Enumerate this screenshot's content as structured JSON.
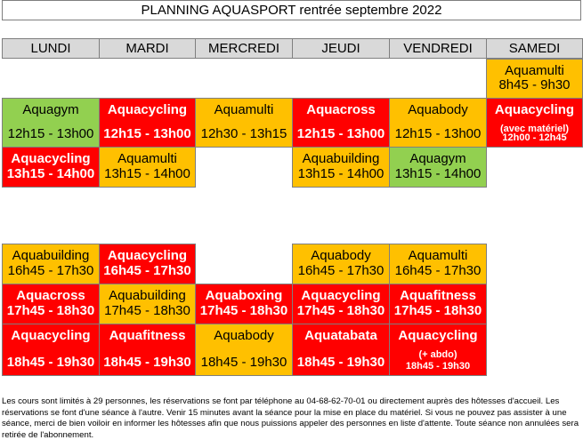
{
  "title": "PLANNING AQUASPORT rentrée septembre 2022",
  "days": [
    "LUNDI",
    "MARDI",
    "MERCREDI",
    "JEUDI",
    "VENDREDI",
    "SAMEDI"
  ],
  "sessions": [
    {
      "day": "SAMEDI",
      "name": "Aquamulti",
      "time": "8h45 - 9h30",
      "color": "orange"
    },
    {
      "day": "LUNDI",
      "name": "Aquagym",
      "time": "12h15 - 13h00",
      "color": "green"
    },
    {
      "day": "MARDI",
      "name": "Aquacycling",
      "time": "12h15 - 13h00",
      "color": "red"
    },
    {
      "day": "MERCREDI",
      "name": "Aquamulti",
      "time": "12h30 - 13h15",
      "color": "orange"
    },
    {
      "day": "JEUDI",
      "name": "Aquacross",
      "time": "12h15 - 13h00",
      "color": "red"
    },
    {
      "day": "VENDREDI",
      "name": "Aquabody",
      "time": "12h15 - 13h00",
      "color": "orange"
    },
    {
      "day": "SAMEDI",
      "name": "Aquacycling",
      "subtitle": "(avec matériel)",
      "time": "12h00 - 12h45",
      "color": "red"
    },
    {
      "day": "LUNDI",
      "name": "Aquacycling",
      "time": "13h15 - 14h00",
      "color": "red"
    },
    {
      "day": "MARDI",
      "name": "Aquamulti",
      "time": "13h15 - 14h00",
      "color": "orange"
    },
    {
      "day": "JEUDI",
      "name": "Aquabuilding",
      "time": "13h15 - 14h00",
      "color": "orange"
    },
    {
      "day": "VENDREDI",
      "name": "Aquagym",
      "time": "13h15 - 14h00",
      "color": "green"
    },
    {
      "day": "LUNDI",
      "name": "Aquabuilding",
      "time": "16h45 - 17h30",
      "color": "orange"
    },
    {
      "day": "MARDI",
      "name": "Aquacycling",
      "time": "16h45 - 17h30",
      "color": "red"
    },
    {
      "day": "JEUDI",
      "name": "Aquabody",
      "time": "16h45 - 17h30",
      "color": "orange"
    },
    {
      "day": "VENDREDI",
      "name": "Aquamulti",
      "time": "16h45 - 17h30",
      "color": "orange"
    },
    {
      "day": "LUNDI",
      "name": "Aquacross",
      "time": "17h45 - 18h30",
      "color": "red"
    },
    {
      "day": "MARDI",
      "name": "Aquabuilding",
      "time": "17h45 - 18h30",
      "color": "orange"
    },
    {
      "day": "MERCREDI",
      "name": "Aquaboxing",
      "time": "17h45 - 18h30",
      "color": "red"
    },
    {
      "day": "JEUDI",
      "name": "Aquacycling",
      "time": "17h45 - 18h30",
      "color": "red"
    },
    {
      "day": "VENDREDI",
      "name": "Aquafitness",
      "time": "17h45 - 18h30",
      "color": "red"
    },
    {
      "day": "LUNDI",
      "name": "Aquacycling",
      "time": "18h45 - 19h30",
      "color": "red"
    },
    {
      "day": "MARDI",
      "name": "Aquafitness",
      "time": "18h45 - 19h30",
      "color": "red"
    },
    {
      "day": "MERCREDI",
      "name": "Aquabody",
      "time": "18h45 - 19h30",
      "color": "orange"
    },
    {
      "day": "JEUDI",
      "name": "Aquatabata",
      "time": "18h45 - 19h30",
      "color": "red"
    },
    {
      "day": "VENDREDI",
      "name": "Aquacycling",
      "subtitle": "(+ abdo)",
      "time": "18h45 - 19h30",
      "color": "red"
    }
  ],
  "colors": {
    "orange": "#ffc000",
    "red": "#ff0000",
    "green": "#92d050",
    "header": "#d9d9d9"
  },
  "note": "Les cours sont limités à 29 personnes, les réservations se font par téléphone au 04-68-62-70-01 ou directement auprès des hôtesses d'accueil. Les réservations se font d'une séance à l'autre. Venir 15 minutes avant la séance pour la mise en place du matériel. Si vous ne pouvez pas assister à une séance, merci de bien voiloir en informer les hôtesses afin que nous puissions appeler des personnes en liste d'attente. Toute séance non annulées sera retirée de l'abonnement."
}
